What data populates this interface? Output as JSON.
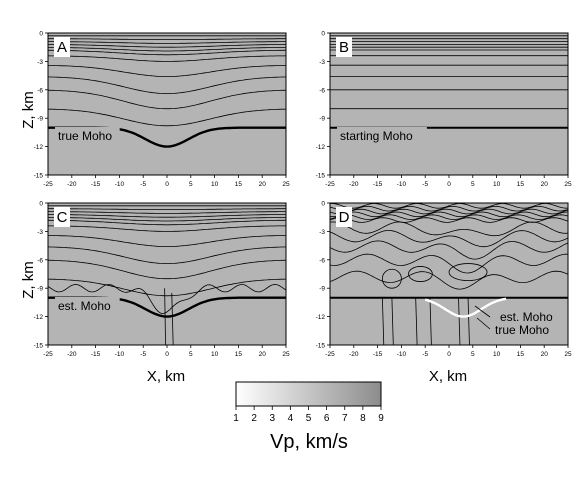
{
  "chart_data": {
    "type": "contour",
    "panels": [
      {
        "letter": "A",
        "annotation": "true Moho",
        "xlim": [
          -25,
          25
        ],
        "ylim": [
          -15,
          0
        ],
        "x_ticks": [
          "-25",
          "-20",
          "-15",
          "-10",
          "-5",
          "0",
          "5",
          "10",
          "15",
          "20",
          "25"
        ],
        "y_ticks": [
          "0",
          "-3",
          "-6",
          "-9",
          "-12",
          "-15"
        ],
        "x_label": "",
        "y_label": "Z, km",
        "moho_depth_flat": -10,
        "moho_depth_center": -12
      },
      {
        "letter": "B",
        "annotation": "starting Moho",
        "xlim": [
          -25,
          25
        ],
        "ylim": [
          -15,
          0
        ],
        "x_ticks": [
          "-25",
          "-20",
          "-15",
          "-10",
          "-5",
          "0",
          "5",
          "10",
          "15",
          "20",
          "25"
        ],
        "y_ticks": [
          "0",
          "-3",
          "-6",
          "-9",
          "-12",
          "-15"
        ],
        "x_label": "",
        "y_label": "",
        "moho_depth_flat": -10
      },
      {
        "letter": "C",
        "annotation": "est. Moho",
        "xlim": [
          -25,
          25
        ],
        "ylim": [
          -15,
          0
        ],
        "x_ticks": [
          "-25",
          "-20",
          "-15",
          "-10",
          "-5",
          "0",
          "5",
          "10",
          "15",
          "20",
          "25"
        ],
        "y_ticks": [
          "0",
          "-3",
          "-6",
          "-9",
          "-12",
          "-15"
        ],
        "x_label": "X, km",
        "y_label": "Z, km",
        "moho_depth_flat": -10,
        "moho_depth_center": -12
      },
      {
        "letter": "D",
        "annotation": "est. Moho",
        "annotation2": "true Moho",
        "xlim": [
          -25,
          25
        ],
        "ylim": [
          -15,
          0
        ],
        "x_ticks": [
          "-25",
          "-20",
          "-15",
          "-10",
          "-5",
          "0",
          "5",
          "10",
          "15",
          "20",
          "25"
        ],
        "y_ticks": [
          "0",
          "-3",
          "-6",
          "-9",
          "-12",
          "-15"
        ],
        "x_label": "X, km",
        "y_label": "",
        "moho_depth_flat": -10,
        "moho_depth_center": -12
      }
    ],
    "colorbar": {
      "title": "Vp, km/s",
      "range": [
        1,
        9
      ],
      "ticks": [
        "1",
        "2",
        "3",
        "4",
        "5",
        "6",
        "7",
        "8",
        "9"
      ],
      "colors": [
        "#ffffff",
        "#8c8c8c"
      ]
    },
    "colors": {
      "fill": "#b4b4b4",
      "contour": "#000000",
      "est_moho": "#ffffff"
    }
  }
}
